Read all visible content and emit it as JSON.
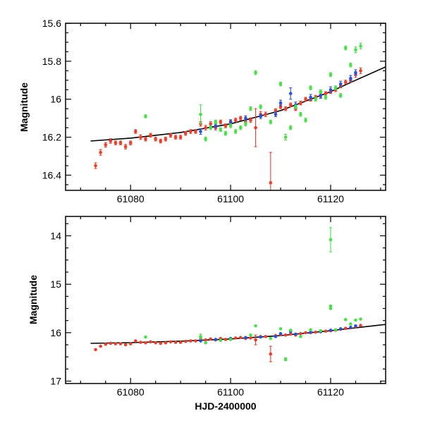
{
  "figure_title": "",
  "x_axis_label": "HJD-2400000",
  "colors": {
    "red": "#e8402c",
    "blue": "#2a52d8",
    "green": "#4ade4a",
    "fit": "#000000"
  },
  "chart_data": [
    {
      "type": "scatter",
      "id": "top",
      "ylabel": "Magnitude",
      "xlabel": "",
      "xlim": [
        61067,
        61131
      ],
      "ylim": [
        16.48,
        15.6
      ],
      "y_inverted": true,
      "x_ticks": [
        61080,
        61100,
        61120
      ],
      "y_ticks": [
        15.6,
        15.8,
        16,
        16.2,
        16.4
      ],
      "y_tick_labels": [
        "15.6",
        "15.8",
        "16",
        "16.2",
        "16.4"
      ],
      "fit": [
        [
          61072,
          16.22
        ],
        [
          61080,
          16.205
        ],
        [
          61090,
          16.175
        ],
        [
          61100,
          16.13
        ],
        [
          61110,
          16.06
        ],
        [
          61120,
          15.96
        ],
        [
          61125,
          15.9
        ],
        [
          61131,
          15.83
        ]
      ],
      "series": [
        {
          "name": "red",
          "points": [
            [
              61073,
              16.35,
              0.015
            ],
            [
              61074,
              16.28,
              0.015
            ],
            [
              61075,
              16.24,
              0.012
            ],
            [
              61076,
              16.22,
              0.012
            ],
            [
              61077,
              16.23,
              0.01
            ],
            [
              61078,
              16.23,
              0.01
            ],
            [
              61079,
              16.25,
              0.012
            ],
            [
              61080,
              16.23,
              0.01
            ],
            [
              61081,
              16.17,
              0.01
            ],
            [
              61082,
              16.2,
              0.012
            ],
            [
              61083,
              16.21,
              0.01
            ],
            [
              61084,
              16.19,
              0.01
            ],
            [
              61085,
              16.21,
              0.01
            ],
            [
              61086,
              16.22,
              0.01
            ],
            [
              61087,
              16.21,
              0.01
            ],
            [
              61088,
              16.19,
              0.01
            ],
            [
              61089,
              16.2,
              0.01
            ],
            [
              61090,
              16.2,
              0.01
            ],
            [
              61091,
              16.18,
              0.01
            ],
            [
              61092,
              16.17,
              0.01
            ],
            [
              61093,
              16.17,
              0.01
            ],
            [
              61094,
              16.13,
              0.012
            ],
            [
              61095,
              16.15,
              0.012
            ],
            [
              61096,
              16.13,
              0.012
            ],
            [
              61097,
              16.15,
              0.012
            ],
            [
              61098,
              16.12,
              0.01
            ],
            [
              61099,
              16.14,
              0.01
            ],
            [
              61100,
              16.12,
              0.01
            ],
            [
              61101,
              16.11,
              0.01
            ],
            [
              61102,
              16.1,
              0.01
            ],
            [
              61103,
              16.12,
              0.01
            ],
            [
              61104,
              16.11,
              0.012
            ],
            [
              61105,
              16.15,
              0.1
            ],
            [
              61106,
              16.08,
              0.015
            ],
            [
              61107,
              16.08,
              0.012
            ],
            [
              61108,
              16.44,
              0.16
            ],
            [
              61109,
              16.06,
              0.01
            ],
            [
              61110,
              16.04,
              0.01
            ],
            [
              61111,
              16.05,
              0.01
            ],
            [
              61112,
              16.03,
              0.01
            ],
            [
              61113,
              16.05,
              0.01
            ],
            [
              61114,
              16.02,
              0.01
            ],
            [
              61115,
              16.0,
              0.01
            ],
            [
              61116,
              16.0,
              0.01
            ],
            [
              61117,
              15.99,
              0.01
            ],
            [
              61118,
              15.98,
              0.01
            ],
            [
              61119,
              15.97,
              0.01
            ],
            [
              61120,
              15.96,
              0.01
            ],
            [
              61121,
              15.95,
              0.01
            ],
            [
              61122,
              15.93,
              0.01
            ],
            [
              61123,
              15.91,
              0.01
            ],
            [
              61124,
              15.9,
              0.01
            ],
            [
              61125,
              15.87,
              0.015
            ],
            [
              61126,
              15.85,
              0.015
            ]
          ]
        },
        {
          "name": "blue",
          "points": [
            [
              61094,
              16.17,
              0.015
            ],
            [
              61097,
              16.14,
              0.012
            ],
            [
              61100,
              16.12,
              0.012
            ],
            [
              61103,
              16.1,
              0.012
            ],
            [
              61106,
              16.09,
              0.012
            ],
            [
              61109,
              16.08,
              0.012
            ],
            [
              61110,
              16.02,
              0.015
            ],
            [
              61112,
              15.97,
              0.03
            ],
            [
              61113,
              16.03,
              0.015
            ],
            [
              61116,
              15.99,
              0.015
            ],
            [
              61118,
              15.98,
              0.015
            ],
            [
              61120,
              15.95,
              0.015
            ],
            [
              61122,
              15.92,
              0.015
            ],
            [
              61124,
              15.89,
              0.015
            ],
            [
              61125,
              15.86,
              0.015
            ]
          ]
        },
        {
          "name": "green",
          "points": [
            [
              61083,
              16.09,
              0.008
            ],
            [
              61094,
              16.08,
              0.05
            ],
            [
              61095,
              16.21,
              0.01
            ],
            [
              61096,
              16.15,
              0.01
            ],
            [
              61097,
              16.12,
              0.01
            ],
            [
              61098,
              16.16,
              0.01
            ],
            [
              61099,
              16.18,
              0.01
            ],
            [
              61100,
              16.14,
              0.01
            ],
            [
              61101,
              16.17,
              0.01
            ],
            [
              61102,
              16.15,
              0.01
            ],
            [
              61103,
              16.13,
              0.01
            ],
            [
              61104,
              16.05,
              0.01
            ],
            [
              61105,
              15.86,
              0.01
            ],
            [
              61106,
              16.04,
              0.01
            ],
            [
              61108,
              16.12,
              0.01
            ],
            [
              61110,
              15.92,
              0.01
            ],
            [
              61111,
              16.2,
              0.015
            ],
            [
              61112,
              16.15,
              0.01
            ],
            [
              61113,
              16.04,
              0.01
            ],
            [
              61114,
              16.08,
              0.01
            ],
            [
              61115,
              16.11,
              0.01
            ],
            [
              61116,
              15.94,
              0.01
            ],
            [
              61117,
              16.0,
              0.01
            ],
            [
              61118,
              15.96,
              0.01
            ],
            [
              61119,
              15.99,
              0.01
            ],
            [
              61120,
              15.87,
              0.01
            ],
            [
              61121,
              15.94,
              0.01
            ],
            [
              61122,
              15.98,
              0.01
            ],
            [
              61123,
              15.73,
              0.01
            ],
            [
              61124,
              15.82,
              0.01
            ],
            [
              61125,
              15.74,
              0.015
            ],
            [
              61126,
              15.72,
              0.015
            ]
          ]
        }
      ]
    },
    {
      "type": "scatter",
      "id": "bottom",
      "ylabel": "Magnitude",
      "xlabel": "HJD-2400000",
      "xlim": [
        61067,
        61131
      ],
      "ylim": [
        17.05,
        13.6
      ],
      "y_inverted": true,
      "x_ticks": [
        61080,
        61100,
        61120
      ],
      "y_ticks": [
        14,
        15,
        16,
        17
      ],
      "y_tick_labels": [
        "14",
        "15",
        "16",
        "17"
      ],
      "fit": [
        [
          61072,
          16.22
        ],
        [
          61080,
          16.205
        ],
        [
          61090,
          16.175
        ],
        [
          61100,
          16.13
        ],
        [
          61110,
          16.06
        ],
        [
          61120,
          15.96
        ],
        [
          61125,
          15.9
        ],
        [
          61131,
          15.83
        ]
      ],
      "series": [
        {
          "name": "red",
          "points": [
            [
              61073,
              16.35,
              0.02
            ],
            [
              61074,
              16.28,
              0.02
            ],
            [
              61075,
              16.24,
              0.02
            ],
            [
              61076,
              16.22,
              0.02
            ],
            [
              61077,
              16.23,
              0.02
            ],
            [
              61078,
              16.23,
              0.02
            ],
            [
              61079,
              16.25,
              0.02
            ],
            [
              61080,
              16.23,
              0.02
            ],
            [
              61081,
              16.17,
              0.02
            ],
            [
              61082,
              16.2,
              0.02
            ],
            [
              61083,
              16.21,
              0.02
            ],
            [
              61084,
              16.19,
              0.02
            ],
            [
              61085,
              16.21,
              0.02
            ],
            [
              61086,
              16.22,
              0.02
            ],
            [
              61087,
              16.21,
              0.02
            ],
            [
              61088,
              16.19,
              0.02
            ],
            [
              61089,
              16.2,
              0.02
            ],
            [
              61090,
              16.2,
              0.02
            ],
            [
              61091,
              16.18,
              0.02
            ],
            [
              61092,
              16.17,
              0.02
            ],
            [
              61093,
              16.17,
              0.02
            ],
            [
              61094,
              16.13,
              0.02
            ],
            [
              61095,
              16.15,
              0.02
            ],
            [
              61096,
              16.13,
              0.02
            ],
            [
              61097,
              16.15,
              0.02
            ],
            [
              61098,
              16.12,
              0.02
            ],
            [
              61099,
              16.14,
              0.02
            ],
            [
              61100,
              16.12,
              0.02
            ],
            [
              61101,
              16.11,
              0.02
            ],
            [
              61102,
              16.1,
              0.02
            ],
            [
              61103,
              16.12,
              0.02
            ],
            [
              61104,
              16.11,
              0.02
            ],
            [
              61105,
              16.15,
              0.1
            ],
            [
              61106,
              16.08,
              0.02
            ],
            [
              61107,
              16.08,
              0.02
            ],
            [
              61108,
              16.44,
              0.16
            ],
            [
              61109,
              16.06,
              0.02
            ],
            [
              61110,
              16.04,
              0.02
            ],
            [
              61111,
              16.05,
              0.02
            ],
            [
              61112,
              16.03,
              0.02
            ],
            [
              61113,
              16.05,
              0.02
            ],
            [
              61114,
              16.02,
              0.02
            ],
            [
              61115,
              16.0,
              0.02
            ],
            [
              61116,
              16.0,
              0.02
            ],
            [
              61117,
              15.99,
              0.02
            ],
            [
              61118,
              15.98,
              0.02
            ],
            [
              61119,
              15.97,
              0.02
            ],
            [
              61120,
              15.96,
              0.02
            ],
            [
              61121,
              15.95,
              0.02
            ],
            [
              61122,
              15.93,
              0.02
            ],
            [
              61123,
              15.91,
              0.02
            ],
            [
              61124,
              15.9,
              0.02
            ],
            [
              61125,
              15.87,
              0.02
            ],
            [
              61126,
              15.85,
              0.02
            ]
          ]
        },
        {
          "name": "blue",
          "points": [
            [
              61094,
              16.17,
              0.02
            ],
            [
              61097,
              16.14,
              0.02
            ],
            [
              61100,
              16.12,
              0.02
            ],
            [
              61103,
              16.1,
              0.02
            ],
            [
              61106,
              16.09,
              0.02
            ],
            [
              61109,
              16.08,
              0.02
            ],
            [
              61110,
              16.02,
              0.02
            ],
            [
              61112,
              15.97,
              0.03
            ],
            [
              61113,
              16.03,
              0.02
            ],
            [
              61116,
              15.99,
              0.02
            ],
            [
              61118,
              15.98,
              0.02
            ],
            [
              61120,
              15.95,
              0.02
            ],
            [
              61122,
              15.92,
              0.02
            ],
            [
              61124,
              15.89,
              0.02
            ],
            [
              61125,
              15.86,
              0.02
            ]
          ]
        },
        {
          "name": "green",
          "points": [
            [
              61083,
              16.09,
              0.02
            ],
            [
              61094,
              16.08,
              0.05
            ],
            [
              61095,
              16.21,
              0.02
            ],
            [
              61098,
              16.16,
              0.02
            ],
            [
              61100,
              16.14,
              0.02
            ],
            [
              61104,
              16.05,
              0.02
            ],
            [
              61105,
              15.86,
              0.02
            ],
            [
              61108,
              16.12,
              0.02
            ],
            [
              61110,
              15.92,
              0.02
            ],
            [
              61111,
              16.55,
              0.03
            ],
            [
              61112,
              15.95,
              0.02
            ],
            [
              61114,
              16.08,
              0.02
            ],
            [
              61116,
              15.94,
              0.02
            ],
            [
              61118,
              15.96,
              0.02
            ],
            [
              61120,
              14.08,
              0.25
            ],
            [
              61120,
              15.45,
              0.02
            ],
            [
              61120,
              15.5,
              0.02
            ],
            [
              61121,
              15.94,
              0.02
            ],
            [
              61123,
              15.73,
              0.02
            ],
            [
              61124,
              15.82,
              0.02
            ],
            [
              61125,
              15.74,
              0.02
            ],
            [
              61126,
              15.72,
              0.02
            ]
          ]
        }
      ]
    }
  ]
}
